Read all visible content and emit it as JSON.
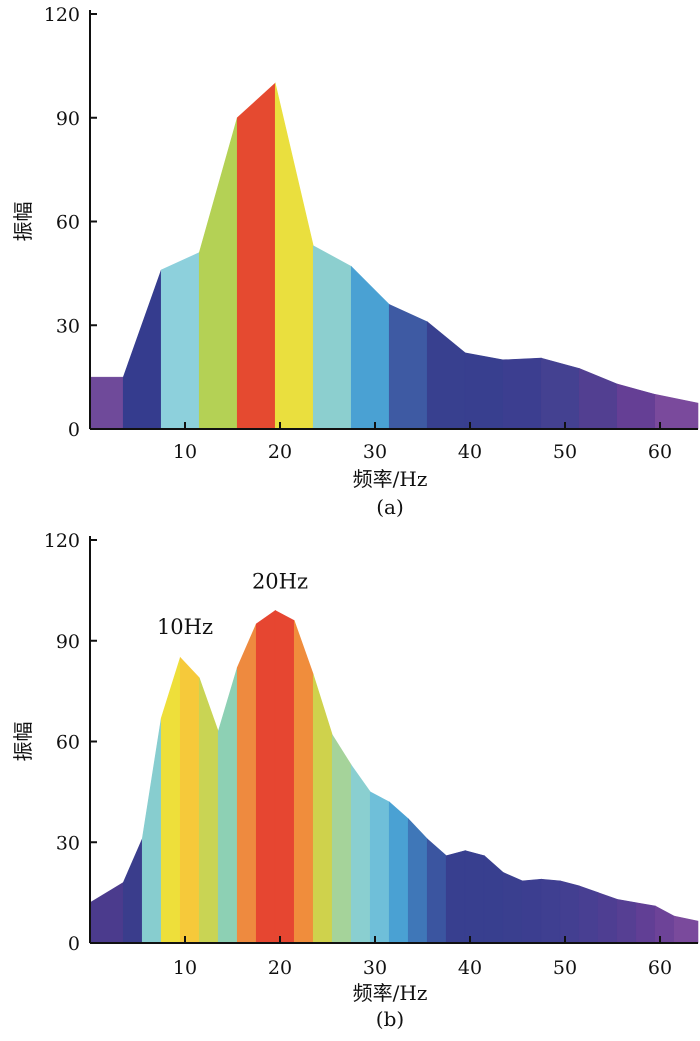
{
  "chart_data": [
    {
      "type": "area",
      "xlabel": "频率/Hz",
      "ylabel": "振幅",
      "caption": "(a)",
      "xlim": [
        0,
        64
      ],
      "ylim": [
        0,
        120
      ],
      "xticks": [
        "10",
        "20",
        "30",
        "40",
        "50",
        "60"
      ],
      "yticks": [
        "0",
        "30",
        "60",
        "90",
        "120"
      ],
      "annotations": [],
      "x": [
        0,
        3.5,
        7.5,
        11.5,
        15.5,
        19.5,
        23.5,
        27.5,
        31.5,
        35.5,
        39.5,
        43.5,
        47.5,
        51.5,
        55.5,
        59.5,
        64
      ],
      "values": [
        15,
        15,
        46,
        51,
        90,
        100,
        53,
        47,
        36,
        31,
        22,
        20,
        20.5,
        17.5,
        13,
        10,
        7.5
      ],
      "band_colors": [
        "#6f4a9a",
        "#353c8e",
        "#8dd0dc",
        "#b4d155",
        "#e54a30",
        "#eadf3e",
        "#8ccfcf",
        "#4aa1d3",
        "#3e5aa3",
        "#38408f",
        "#383f8f",
        "#3c3e90",
        "#444191",
        "#523f91",
        "#653f95",
        "#7a4a9c"
      ]
    },
    {
      "type": "area",
      "xlabel": "频率/Hz",
      "ylabel": "振幅",
      "caption": "(b)",
      "xlim": [
        0,
        64
      ],
      "ylim": [
        0,
        120
      ],
      "xticks": [
        "10",
        "20",
        "30",
        "40",
        "50",
        "60"
      ],
      "yticks": [
        "0",
        "30",
        "60",
        "90",
        "120"
      ],
      "annotations": [
        {
          "text": "10Hz",
          "x": 10,
          "y": 92
        },
        {
          "text": "20Hz",
          "x": 20,
          "y": 105.5
        }
      ],
      "x": [
        0,
        3.5,
        5.5,
        7.5,
        9.5,
        11.5,
        13.5,
        15.5,
        17.5,
        19.5,
        21.5,
        23.5,
        25.5,
        27.5,
        29.5,
        31.5,
        33.5,
        35.5,
        37.5,
        39.5,
        41.5,
        43.5,
        45.5,
        47.5,
        49.5,
        51.5,
        53.5,
        55.5,
        57.5,
        59.5,
        61.5,
        64
      ],
      "values": [
        12,
        18,
        31,
        67,
        85,
        79,
        63,
        82,
        95,
        99,
        96,
        80,
        62,
        53,
        45,
        42,
        37,
        31,
        26,
        27.5,
        26,
        21,
        18.5,
        19,
        18.5,
        17,
        15,
        13,
        12,
        11,
        8,
        6.5
      ],
      "band_colors": [
        "#4b3b8d",
        "#3a3d8c",
        "#87cdcf",
        "#eedf3a",
        "#f6c93a",
        "#c9d454",
        "#8dd0b4",
        "#ee8a3f",
        "#e64631",
        "#e64631",
        "#f08d3c",
        "#cfd24c",
        "#a5d39a",
        "#8acfd0",
        "#6fbfd9",
        "#4aa1d3",
        "#3f77b8",
        "#3b55a0",
        "#383f8f",
        "#383f8f",
        "#383f8f",
        "#3a3f8f",
        "#3c3e90",
        "#3f3f91",
        "#433f91",
        "#483f92",
        "#4e3e92",
        "#563f93",
        "#613f95",
        "#6d4398",
        "#7a4a9c"
      ]
    }
  ]
}
